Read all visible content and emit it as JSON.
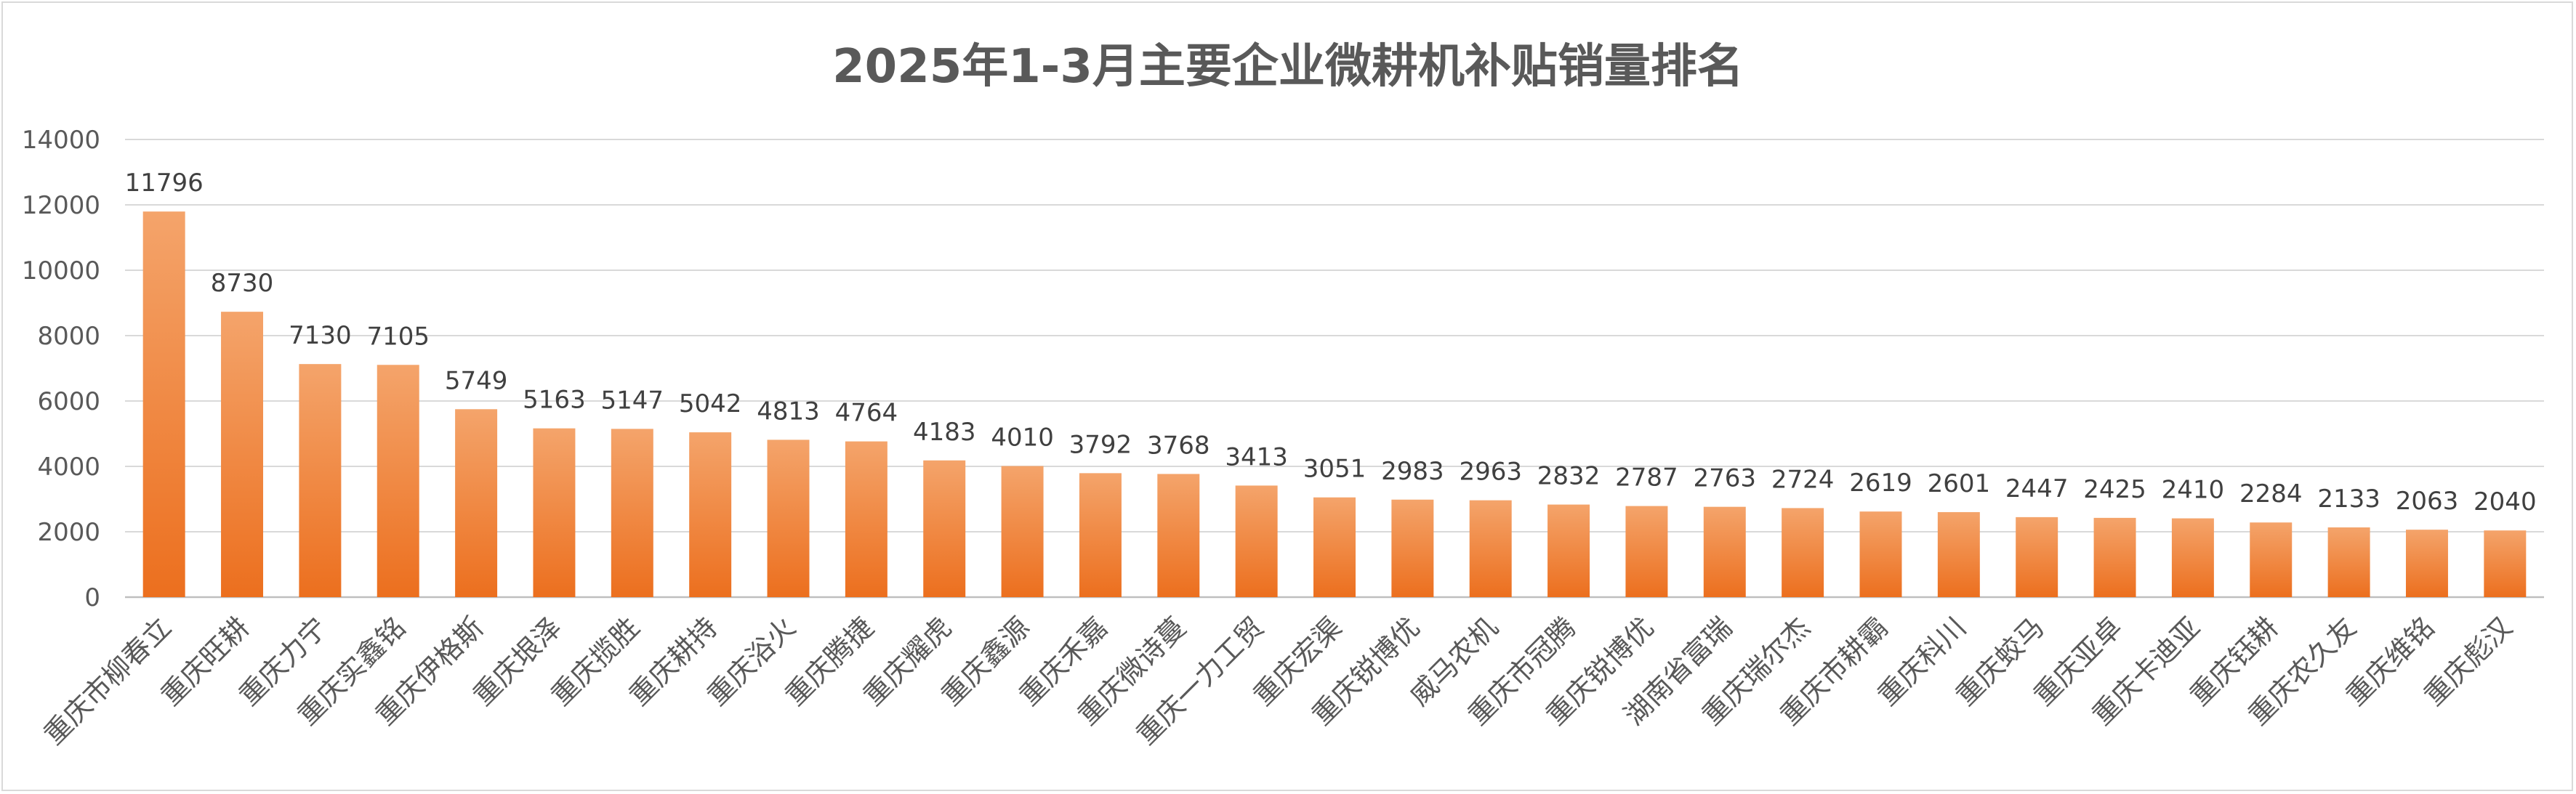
{
  "chart_data": {
    "type": "bar",
    "title": "2025年1-3月主要企业微耕机补贴销量排名",
    "xlabel": "",
    "ylabel": "",
    "ylim": [
      0,
      14000
    ],
    "yticks": [
      0,
      2000,
      4000,
      6000,
      8000,
      10000,
      12000,
      14000
    ],
    "grid": true,
    "legend": "none",
    "bar_color_top": "#f4a46b",
    "bar_color_bottom": "#ec6f1e",
    "categories": [
      "重庆市柳春立",
      "重庆旺耕",
      "重庆力宁",
      "重庆实鑫铭",
      "重庆伊格斯",
      "重庆垠泽",
      "重庆揽胜",
      "重庆耕持",
      "重庆浴火",
      "重庆腾捷",
      "重庆耀虎",
      "重庆鑫源",
      "重庆禾嘉",
      "重庆微诗蔓",
      "重庆一力工贸",
      "重庆宏渠",
      "重庆锐博优",
      "威马农机",
      "重庆市冠腾",
      "重庆锐博优",
      "湖南省富瑞",
      "重庆瑞尔杰",
      "重庆市耕霸",
      "重庆科川",
      "重庆蛟马",
      "重庆亚卓",
      "重庆卡迪亚",
      "重庆钰耕",
      "重庆农久友",
      "重庆维铭",
      "重庆彪汉"
    ],
    "values": [
      11796,
      8730,
      7130,
      7105,
      5749,
      5163,
      5147,
      5042,
      4813,
      4764,
      4183,
      4010,
      3792,
      3768,
      3413,
      3051,
      2983,
      2963,
      2832,
      2787,
      2763,
      2724,
      2619,
      2601,
      2447,
      2425,
      2410,
      2284,
      2133,
      2063,
      2040
    ]
  }
}
